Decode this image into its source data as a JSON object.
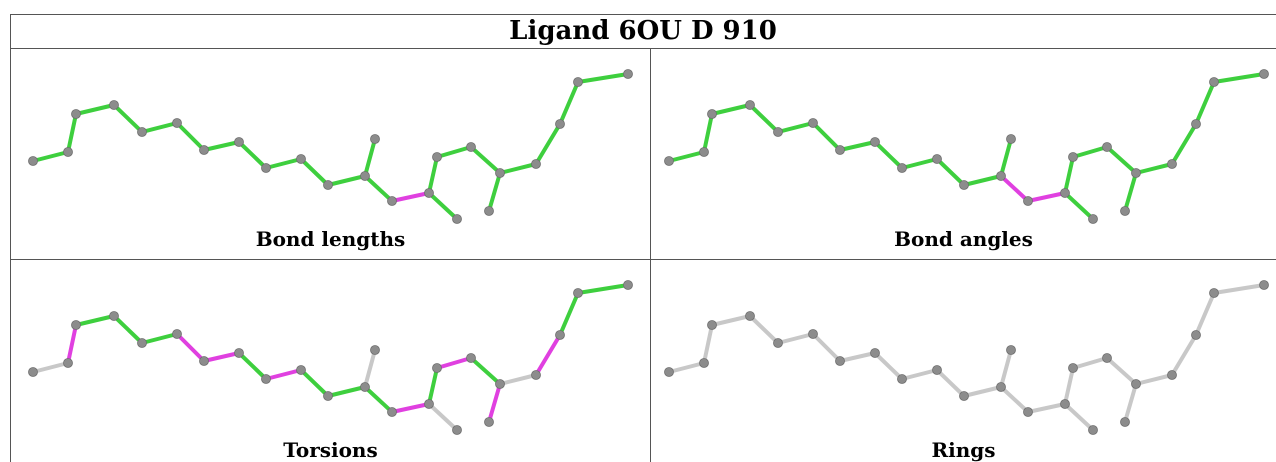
{
  "table": {
    "title": "Ligand 6OU D 910"
  },
  "panels": [
    {
      "key": "bond_lengths",
      "caption": "Bond lengths"
    },
    {
      "key": "bond_angles",
      "caption": "Bond angles"
    },
    {
      "key": "torsions",
      "caption": "Torsions"
    },
    {
      "key": "rings",
      "caption": "Rings"
    }
  ],
  "colors": {
    "green": "#3ecf3e",
    "magenta": "#e040e0",
    "grey_bond": "#c8c8c8",
    "atom": "#8c8c8c"
  }
}
